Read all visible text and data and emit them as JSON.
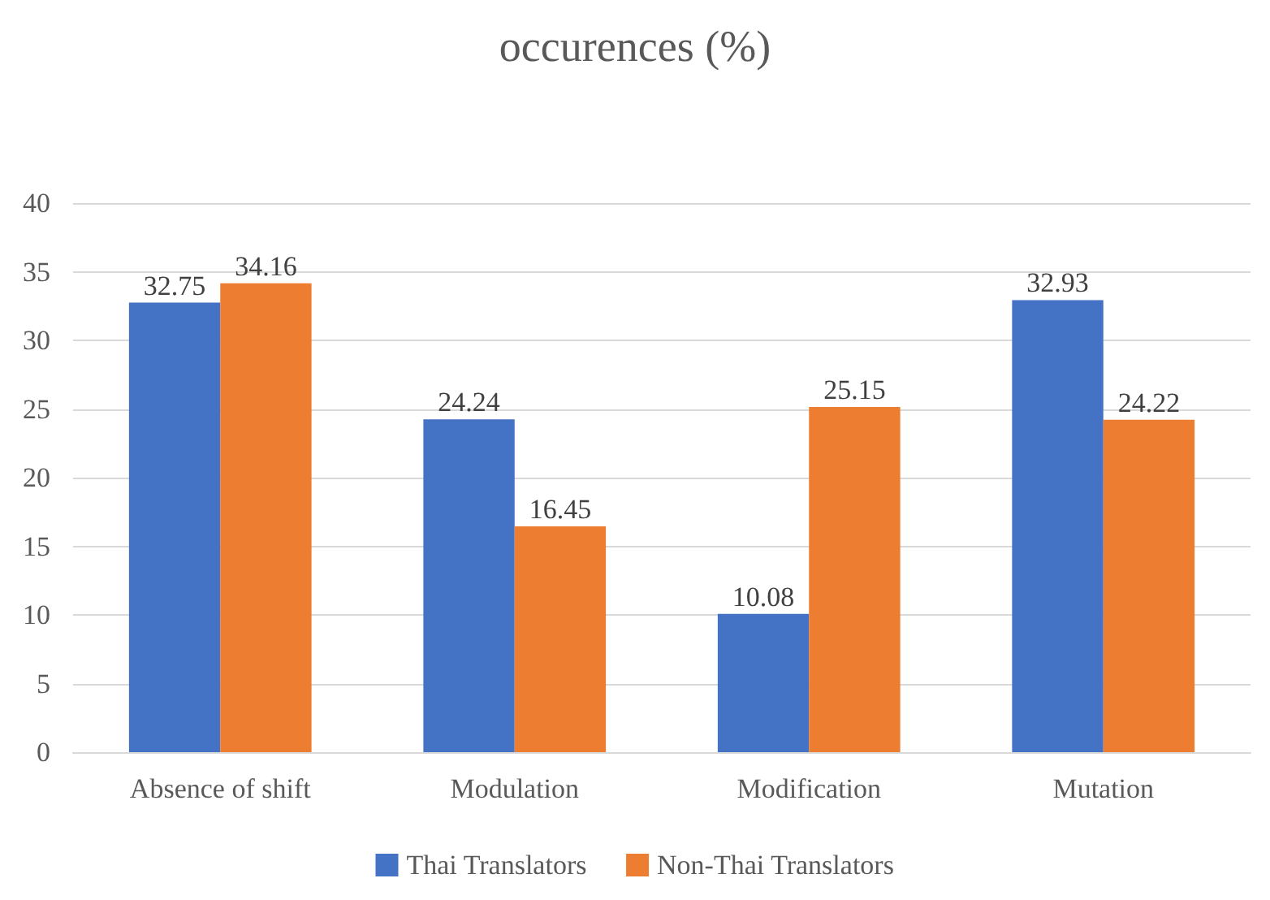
{
  "chart_data": {
    "type": "bar",
    "title": "occurences (%)",
    "categories": [
      "Absence of shift",
      "Modulation",
      "Modification",
      "Mutation"
    ],
    "series": [
      {
        "name": "Thai Translators",
        "color": "#4472c4",
        "values": [
          32.75,
          24.24,
          10.08,
          32.93
        ]
      },
      {
        "name": "Non-Thai Translators",
        "color": "#ed7d31",
        "values": [
          34.16,
          16.45,
          25.15,
          24.22
        ]
      }
    ],
    "ylim": [
      0,
      40
    ],
    "yticks": [
      0,
      5,
      10,
      15,
      20,
      25,
      30,
      35,
      40
    ],
    "grid": "y",
    "legend": "bottom",
    "data_labels": true
  }
}
